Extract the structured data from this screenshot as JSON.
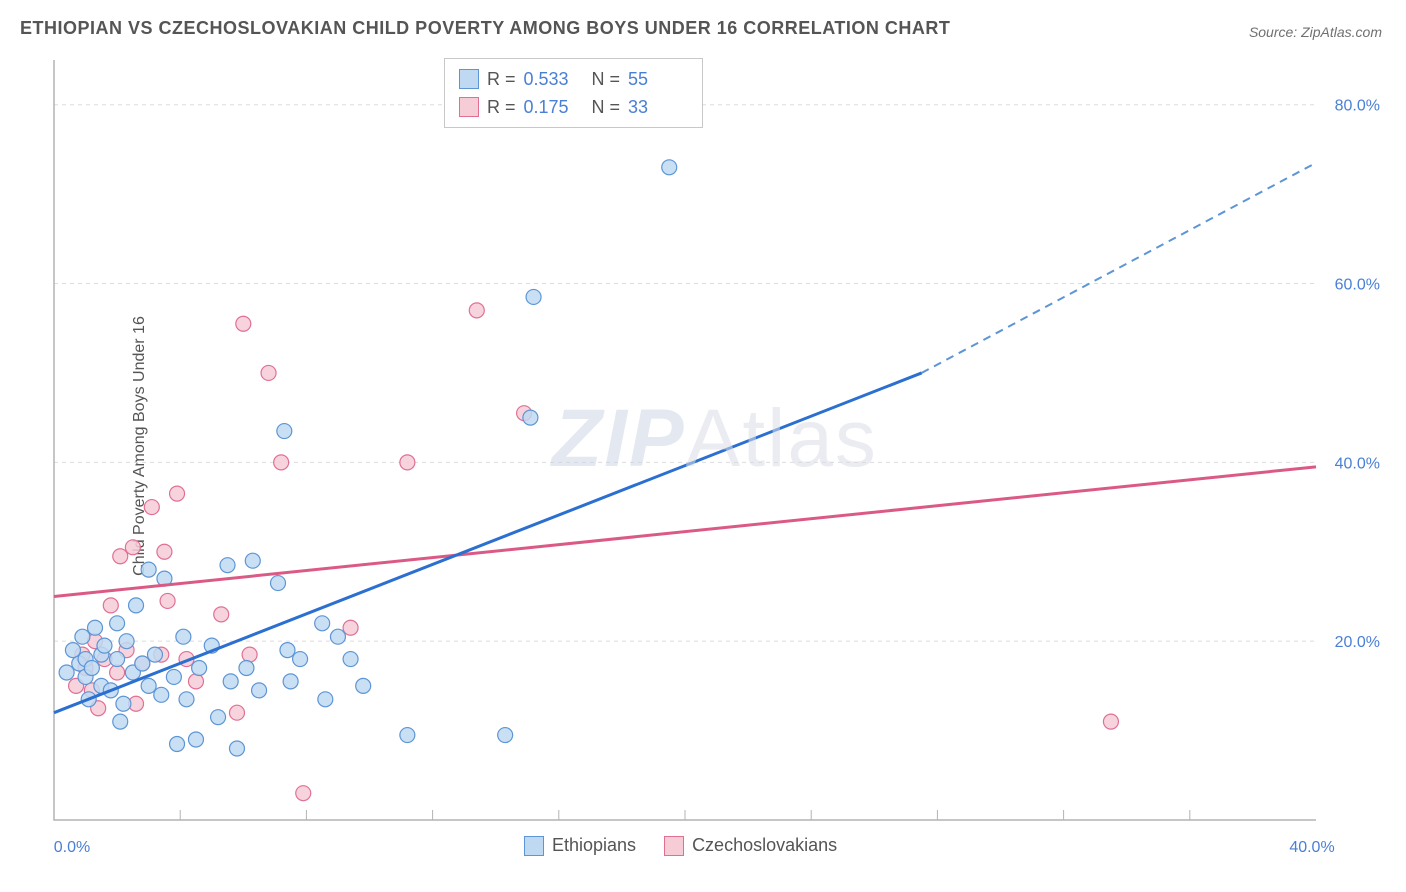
{
  "title": "ETHIOPIAN VS CZECHOSLOVAKIAN CHILD POVERTY AMONG BOYS UNDER 16 CORRELATION CHART",
  "source_label": "Source: ZipAtlas.com",
  "y_axis_title": "Child Poverty Among Boys Under 16",
  "watermark": {
    "part1": "ZIP",
    "part2": "Atlas"
  },
  "chart": {
    "type": "scatter",
    "xlim": [
      0,
      40
    ],
    "ylim": [
      0,
      85
    ],
    "x_ticks": [
      0,
      20,
      40
    ],
    "x_tick_labels": [
      "0.0%",
      "",
      "40.0%"
    ],
    "y_ticks": [
      20,
      40,
      60,
      80
    ],
    "y_tick_labels": [
      "20.0%",
      "40.0%",
      "60.0%",
      "80.0%"
    ],
    "grid_y": [
      20,
      40,
      60,
      80
    ],
    "x_minor_ticks": [
      4,
      8,
      12,
      16,
      20,
      24,
      28,
      32,
      36
    ],
    "background_color": "#ffffff",
    "grid_color": "#dcdcdc",
    "axis_color": "#b3b3b3",
    "tick_label_color": "#4a7fd6",
    "marker_radius": 7.5,
    "series": {
      "ethiopians": {
        "label": "Ethiopians",
        "R": "0.533",
        "N": "55",
        "fill": "#bfd9f2",
        "stroke": "#5d95d5",
        "trend_color": "#2b6fd0",
        "trend_solid": {
          "x1": 0,
          "y1": 12.0,
          "x2": 27.5,
          "y2": 50.0
        },
        "trend_dash": {
          "x1": 27.5,
          "y1": 50.0,
          "x2": 40.0,
          "y2": 73.5
        },
        "points": [
          [
            0.4,
            16.5
          ],
          [
            0.6,
            19.0
          ],
          [
            0.8,
            17.5
          ],
          [
            0.9,
            20.5
          ],
          [
            1.0,
            18.0
          ],
          [
            1.0,
            16.0
          ],
          [
            1.1,
            13.5
          ],
          [
            1.2,
            17.0
          ],
          [
            1.3,
            21.5
          ],
          [
            1.5,
            18.5
          ],
          [
            1.5,
            15.0
          ],
          [
            1.6,
            19.5
          ],
          [
            1.8,
            14.5
          ],
          [
            2.0,
            18.0
          ],
          [
            2.0,
            22.0
          ],
          [
            2.1,
            11.0
          ],
          [
            2.2,
            13.0
          ],
          [
            2.3,
            20.0
          ],
          [
            2.5,
            16.5
          ],
          [
            2.6,
            24.0
          ],
          [
            2.8,
            17.5
          ],
          [
            3.0,
            28.0
          ],
          [
            3.0,
            15.0
          ],
          [
            3.2,
            18.5
          ],
          [
            3.4,
            14.0
          ],
          [
            3.5,
            27.0
          ],
          [
            3.8,
            16.0
          ],
          [
            3.9,
            8.5
          ],
          [
            4.1,
            20.5
          ],
          [
            4.2,
            13.5
          ],
          [
            4.5,
            9.0
          ],
          [
            4.6,
            17.0
          ],
          [
            5.0,
            19.5
          ],
          [
            5.2,
            11.5
          ],
          [
            5.5,
            28.5
          ],
          [
            5.6,
            15.5
          ],
          [
            5.8,
            8.0
          ],
          [
            6.1,
            17.0
          ],
          [
            6.3,
            29.0
          ],
          [
            6.5,
            14.5
          ],
          [
            7.1,
            26.5
          ],
          [
            7.3,
            43.5
          ],
          [
            7.4,
            19.0
          ],
          [
            7.5,
            15.5
          ],
          [
            7.8,
            18.0
          ],
          [
            8.5,
            22.0
          ],
          [
            8.6,
            13.5
          ],
          [
            9.0,
            20.5
          ],
          [
            9.4,
            18.0
          ],
          [
            9.8,
            15.0
          ],
          [
            11.2,
            9.5
          ],
          [
            14.3,
            9.5
          ],
          [
            15.2,
            58.5
          ],
          [
            15.1,
            45.0
          ],
          [
            19.5,
            73.0
          ]
        ]
      },
      "czechoslovakians": {
        "label": "Czechoslovakians",
        "R": "0.175",
        "N": "33",
        "fill": "#f6cdd7",
        "stroke": "#e16f94",
        "trend_color": "#db5a85",
        "trend": {
          "x1": 0,
          "y1": 25.0,
          "x2": 40.0,
          "y2": 39.5
        },
        "points": [
          [
            0.7,
            15.0
          ],
          [
            0.9,
            18.5
          ],
          [
            1.0,
            17.0
          ],
          [
            1.2,
            14.5
          ],
          [
            1.3,
            20.0
          ],
          [
            1.4,
            12.5
          ],
          [
            1.6,
            18.0
          ],
          [
            1.8,
            24.0
          ],
          [
            2.0,
            16.5
          ],
          [
            2.1,
            29.5
          ],
          [
            2.3,
            19.0
          ],
          [
            2.5,
            30.5
          ],
          [
            2.6,
            13.0
          ],
          [
            2.8,
            17.5
          ],
          [
            3.1,
            35.0
          ],
          [
            3.4,
            18.5
          ],
          [
            3.5,
            30.0
          ],
          [
            3.6,
            24.5
          ],
          [
            3.9,
            36.5
          ],
          [
            4.2,
            18.0
          ],
          [
            4.5,
            15.5
          ],
          [
            5.3,
            23.0
          ],
          [
            5.8,
            12.0
          ],
          [
            6.0,
            55.5
          ],
          [
            6.2,
            18.5
          ],
          [
            6.8,
            50.0
          ],
          [
            7.2,
            40.0
          ],
          [
            7.9,
            3.0
          ],
          [
            9.4,
            21.5
          ],
          [
            11.2,
            40.0
          ],
          [
            13.4,
            57.0
          ],
          [
            14.9,
            45.5
          ],
          [
            33.5,
            11.0
          ]
        ]
      }
    }
  },
  "legend_top": {
    "rows": [
      {
        "series": "ethiopians",
        "r_label": "R =",
        "r_value": "0.533",
        "n_label": "N =",
        "n_value": "55"
      },
      {
        "series": "czechoslovakians",
        "r_label": "R =",
        "r_value": "0.175",
        "n_label": "N =",
        "n_value": "33"
      }
    ]
  },
  "legend_bottom": [
    {
      "series": "ethiopians",
      "label": "Ethiopians"
    },
    {
      "series": "czechoslovakians",
      "label": "Czechoslovakians"
    }
  ]
}
